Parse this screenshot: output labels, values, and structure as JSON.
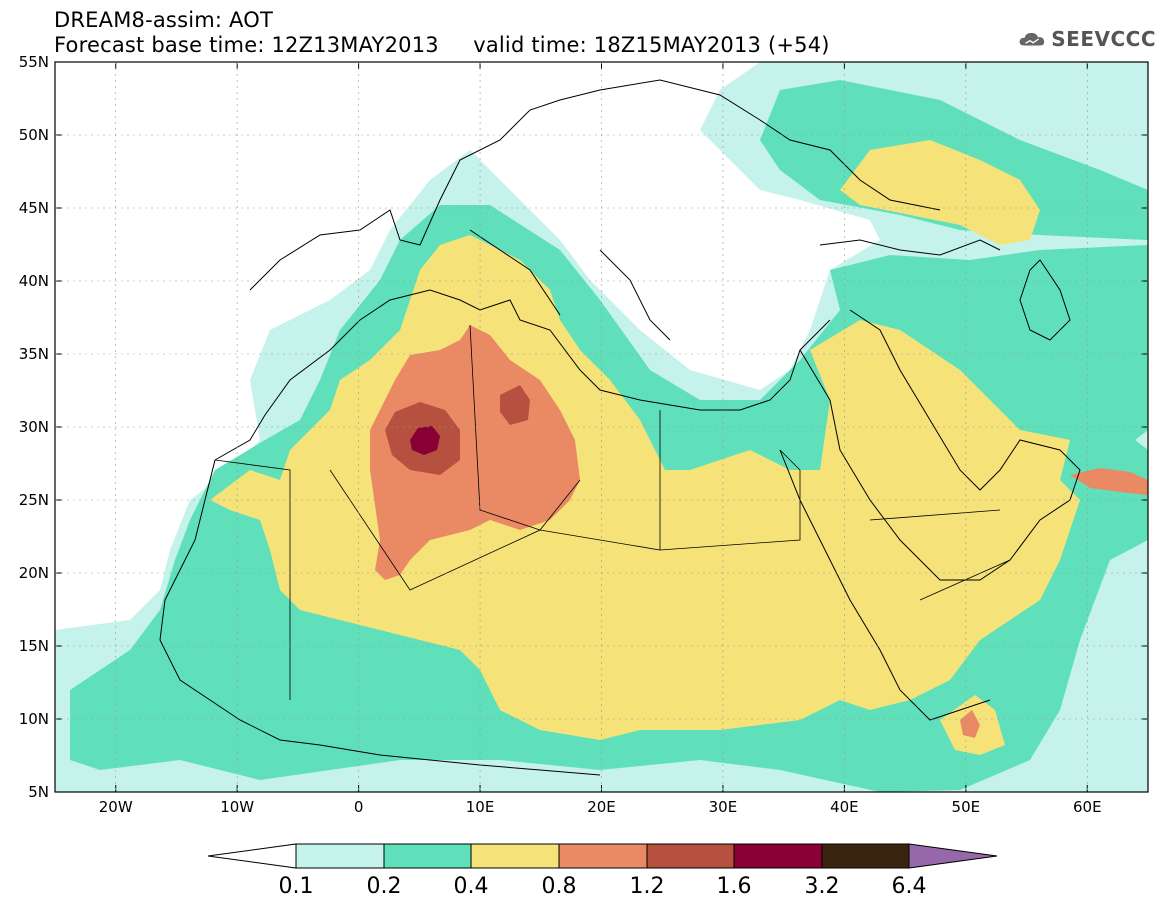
{
  "header": {
    "title_line1": "DREAM8-assim: AOT",
    "title_line2": "Forecast base time: 12Z13MAY2013     valid time: 18Z15MAY2013 (+54)",
    "logo_text": "SEEVCCC"
  },
  "map": {
    "lat_labels": [
      "55N",
      "50N",
      "45N",
      "40N",
      "35N",
      "30N",
      "25N",
      "20N",
      "15N",
      "10N",
      "5N"
    ],
    "lon_labels": [
      "20W",
      "10W",
      "0",
      "10E",
      "20E",
      "30E",
      "40E",
      "50E",
      "60E"
    ],
    "lon_range": [
      -25,
      65
    ],
    "lat_range": [
      5,
      55
    ],
    "colors": {
      "c01": "#c5f2ea",
      "c02": "#5fe0bb",
      "c04": "#f5e37a",
      "c08": "#ea8a64",
      "c12": "#b6503f",
      "c16": "#880034",
      "c32": "#3a2410",
      "c64": "#9668aa"
    }
  },
  "colorbar": {
    "labels": [
      "0.1",
      "0.2",
      "0.4",
      "0.8",
      "1.2",
      "1.6",
      "3.2",
      "6.4"
    ]
  }
}
